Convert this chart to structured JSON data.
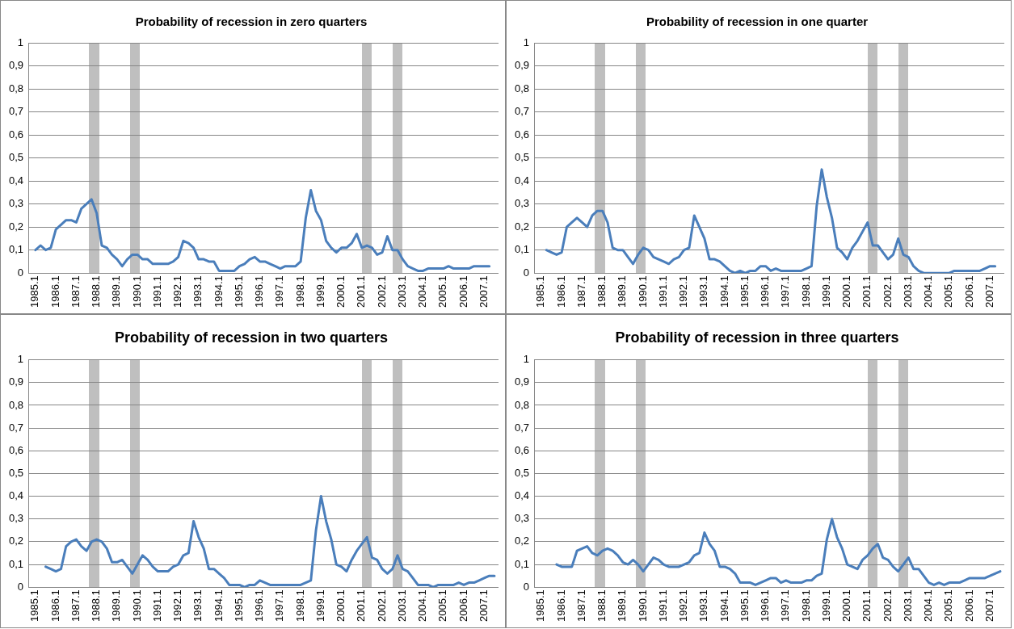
{
  "chart_data": [
    {
      "type": "line",
      "title": "Probability of recession in zero quarters",
      "categories": [
        "1985.1",
        null,
        null,
        null,
        "1986.1",
        null,
        null,
        null,
        "1987.1",
        null,
        null,
        null,
        "1988.1",
        null,
        null,
        null,
        "1989.1",
        null,
        null,
        null,
        "1990.1",
        null,
        null,
        null,
        "1991.1",
        null,
        null,
        null,
        "1992.1",
        null,
        null,
        null,
        "1993.1",
        null,
        null,
        null,
        "1994.1",
        null,
        null,
        null,
        "1995.1",
        null,
        null,
        null,
        "1996.1",
        null,
        null,
        null,
        "1997.1",
        null,
        null,
        null,
        "1998.1",
        null,
        null,
        null,
        "1999.1",
        null,
        null,
        null,
        "2000.1",
        null,
        null,
        null,
        "2001.1",
        null,
        null,
        null,
        "2002.1",
        null,
        null,
        null,
        "2003.1",
        null,
        null,
        null,
        "2004.1",
        null,
        null,
        null,
        "2005.1",
        null,
        null,
        null,
        "2006.1",
        null,
        null,
        null,
        "2007.1",
        null,
        null
      ],
      "series": [
        {
          "color": "#4a7ebb",
          "values": [
            0.1,
            0.12,
            0.1,
            0.11,
            0.19,
            0.21,
            0.23,
            0.23,
            0.22,
            0.28,
            0.3,
            0.32,
            0.26,
            0.12,
            0.11,
            0.08,
            0.06,
            0.03,
            0.06,
            0.08,
            0.08,
            0.06,
            0.06,
            0.04,
            0.04,
            0.04,
            0.04,
            0.05,
            0.07,
            0.14,
            0.13,
            0.11,
            0.06,
            0.06,
            0.05,
            0.05,
            0.01,
            0.01,
            0.01,
            0.01,
            0.03,
            0.04,
            0.06,
            0.07,
            0.05,
            0.05,
            0.04,
            0.03,
            0.02,
            0.03,
            0.03,
            0.03,
            0.05,
            0.24,
            0.36,
            0.27,
            0.23,
            0.14,
            0.11,
            0.09,
            0.11,
            0.11,
            0.13,
            0.17,
            0.11,
            0.12,
            0.11,
            0.08,
            0.09,
            0.16,
            0.1,
            0.1,
            0.06,
            0.03,
            0.02,
            0.01,
            0.01,
            0.02,
            0.02,
            0.02,
            0.02,
            0.03,
            0.02,
            0.02,
            0.02,
            0.02,
            0.03,
            0.03,
            0.03,
            0.03,
            null
          ]
        }
      ],
      "ylim": [
        0,
        1
      ],
      "yticks": [
        {
          "value": 0,
          "label": "0"
        },
        {
          "value": 0.1,
          "label": "0,1"
        },
        {
          "value": 0.2,
          "label": "0,2"
        },
        {
          "value": 0.3,
          "label": "0,3"
        },
        {
          "value": 0.4,
          "label": "0,4"
        },
        {
          "value": 0.5,
          "label": "0,5"
        },
        {
          "value": 0.6,
          "label": "0,6"
        },
        {
          "value": 0.7,
          "label": "0,7"
        },
        {
          "value": 0.8,
          "label": "0,8"
        },
        {
          "value": 0.9,
          "label": "0,9"
        },
        {
          "value": 1,
          "label": "1"
        }
      ],
      "grid": "y",
      "marker": "none",
      "line_style": "solid"
    },
    {
      "type": "line",
      "title": "Probability of recession in one quarter",
      "categories": [
        "1985.1",
        null,
        null,
        null,
        "1986.1",
        null,
        null,
        null,
        "1987.1",
        null,
        null,
        null,
        "1988.1",
        null,
        null,
        null,
        "1989.1",
        null,
        null,
        null,
        "1990.1",
        null,
        null,
        null,
        "1991.1",
        null,
        null,
        null,
        "1992.1",
        null,
        null,
        null,
        "1993.1",
        null,
        null,
        null,
        "1994.1",
        null,
        null,
        null,
        "1995.1",
        null,
        null,
        null,
        "1996.1",
        null,
        null,
        null,
        "1997.1",
        null,
        null,
        null,
        "1998.1",
        null,
        null,
        null,
        "1999.1",
        null,
        null,
        null,
        "2000.1",
        null,
        null,
        null,
        "2001.1",
        null,
        null,
        null,
        "2002.1",
        null,
        null,
        null,
        "2003.1",
        null,
        null,
        null,
        "2004.1",
        null,
        null,
        null,
        "2005.1",
        null,
        null,
        null,
        "2006.1",
        null,
        null,
        null,
        "2007.1",
        null,
        null
      ],
      "series": [
        {
          "color": "#4a7ebb",
          "values": [
            null,
            0.1,
            0.09,
            0.08,
            0.09,
            0.2,
            0.22,
            0.24,
            0.22,
            0.2,
            0.25,
            0.27,
            0.27,
            0.22,
            0.11,
            0.1,
            0.1,
            0.07,
            0.04,
            0.08,
            0.11,
            0.1,
            0.07,
            0.06,
            0.05,
            0.04,
            0.06,
            0.07,
            0.1,
            0.11,
            0.25,
            0.2,
            0.15,
            0.06,
            0.06,
            0.05,
            0.03,
            0.01,
            0.0,
            0.01,
            0.0,
            0.01,
            0.01,
            0.03,
            0.03,
            0.01,
            0.02,
            0.01,
            0.01,
            0.01,
            0.01,
            0.01,
            0.02,
            0.03,
            0.29,
            0.45,
            0.33,
            0.24,
            0.11,
            0.09,
            0.06,
            0.11,
            0.14,
            0.18,
            0.22,
            0.12,
            0.12,
            0.09,
            0.06,
            0.08,
            0.15,
            0.08,
            0.07,
            0.03,
            0.01,
            0.0,
            0.0,
            0.0,
            0.0,
            0.0,
            0.0,
            0.01,
            0.01,
            0.01,
            0.01,
            0.01,
            0.01,
            0.02,
            0.03,
            0.03,
            null
          ]
        }
      ],
      "ylim": [
        0,
        1
      ],
      "yticks": [
        {
          "value": 0,
          "label": "0"
        },
        {
          "value": 0.1,
          "label": "0,1"
        },
        {
          "value": 0.2,
          "label": "0,2"
        },
        {
          "value": 0.3,
          "label": "0,3"
        },
        {
          "value": 0.4,
          "label": "0,4"
        },
        {
          "value": 0.5,
          "label": "0,5"
        },
        {
          "value": 0.6,
          "label": "0,6"
        },
        {
          "value": 0.7,
          "label": "0,7"
        },
        {
          "value": 0.8,
          "label": "0,8"
        },
        {
          "value": 0.9,
          "label": "0,9"
        },
        {
          "value": 1,
          "label": "1"
        }
      ],
      "grid": "y",
      "marker": "none",
      "line_style": "solid"
    },
    {
      "type": "line",
      "title": "Probability of recession in two quarters",
      "categories": [
        "1985.1",
        null,
        null,
        null,
        "1986.1",
        null,
        null,
        null,
        "1987.1",
        null,
        null,
        null,
        "1988.1",
        null,
        null,
        null,
        "1989.1",
        null,
        null,
        null,
        "1990.1",
        null,
        null,
        null,
        "1991.1",
        null,
        null,
        null,
        "1992.1",
        null,
        null,
        null,
        "1993.1",
        null,
        null,
        null,
        "1994.1",
        null,
        null,
        null,
        "1995.1",
        null,
        null,
        null,
        "1996.1",
        null,
        null,
        null,
        "1997.1",
        null,
        null,
        null,
        "1998.1",
        null,
        null,
        null,
        "1999.1",
        null,
        null,
        null,
        "2000.1",
        null,
        null,
        null,
        "2001.1",
        null,
        null,
        null,
        "2002.1",
        null,
        null,
        null,
        "2003.1",
        null,
        null,
        null,
        "2004.1",
        null,
        null,
        null,
        "2005.1",
        null,
        null,
        null,
        "2006.1",
        null,
        null,
        null,
        "2007.1",
        null,
        null
      ],
      "series": [
        {
          "color": "#4a7ebb",
          "values": [
            null,
            null,
            0.09,
            0.08,
            0.07,
            0.08,
            0.18,
            0.2,
            0.21,
            0.18,
            0.16,
            0.2,
            0.21,
            0.2,
            0.17,
            0.11,
            0.11,
            0.12,
            0.09,
            0.06,
            0.1,
            0.14,
            0.12,
            0.09,
            0.07,
            0.07,
            0.07,
            0.09,
            0.1,
            0.14,
            0.15,
            0.29,
            0.22,
            0.17,
            0.08,
            0.08,
            0.06,
            0.04,
            0.01,
            0.01,
            0.01,
            0.0,
            0.01,
            0.01,
            0.03,
            0.02,
            0.01,
            0.01,
            0.01,
            0.01,
            0.01,
            0.01,
            0.01,
            0.02,
            0.03,
            0.25,
            0.4,
            0.29,
            0.21,
            0.1,
            0.09,
            0.07,
            0.12,
            0.16,
            0.19,
            0.22,
            0.13,
            0.12,
            0.08,
            0.06,
            0.08,
            0.14,
            0.08,
            0.07,
            0.04,
            0.01,
            0.01,
            0.01,
            0.0,
            0.01,
            0.01,
            0.01,
            0.01,
            0.02,
            0.01,
            0.02,
            0.02,
            0.03,
            0.04,
            0.05,
            0.05
          ]
        }
      ],
      "ylim": [
        0,
        1
      ],
      "yticks": [
        {
          "value": 0,
          "label": "0"
        },
        {
          "value": 0.1,
          "label": "0,1"
        },
        {
          "value": 0.2,
          "label": "0,2"
        },
        {
          "value": 0.3,
          "label": "0,3"
        },
        {
          "value": 0.4,
          "label": "0,4"
        },
        {
          "value": 0.5,
          "label": "0,5"
        },
        {
          "value": 0.6,
          "label": "0,6"
        },
        {
          "value": 0.7,
          "label": "0,7"
        },
        {
          "value": 0.8,
          "label": "0,8"
        },
        {
          "value": 0.9,
          "label": "0,9"
        },
        {
          "value": 1,
          "label": "1"
        }
      ],
      "grid": "y",
      "marker": "none",
      "line_style": "solid"
    },
    {
      "type": "line",
      "title": "Probability of recession in three quarters",
      "categories": [
        "1985.1",
        null,
        null,
        null,
        "1986.1",
        null,
        null,
        null,
        "1987.1",
        null,
        null,
        null,
        "1988.1",
        null,
        null,
        null,
        "1989.1",
        null,
        null,
        null,
        "1990.1",
        null,
        null,
        null,
        "1991.1",
        null,
        null,
        null,
        "1992.1",
        null,
        null,
        null,
        "1993.1",
        null,
        null,
        null,
        "1994.1",
        null,
        null,
        null,
        "1995.1",
        null,
        null,
        null,
        "1996.1",
        null,
        null,
        null,
        "1997.1",
        null,
        null,
        null,
        "1998.1",
        null,
        null,
        null,
        "1999.1",
        null,
        null,
        null,
        "2000.1",
        null,
        null,
        null,
        "2001.1",
        null,
        null,
        null,
        "2002.1",
        null,
        null,
        null,
        "2003.1",
        null,
        null,
        null,
        "2004.1",
        null,
        null,
        null,
        "2005.1",
        null,
        null,
        null,
        "2006.1",
        null,
        null,
        null,
        "2007.1",
        null,
        null
      ],
      "series": [
        {
          "color": "#4a7ebb",
          "values": [
            null,
            null,
            null,
            0.1,
            0.09,
            0.09,
            0.09,
            0.16,
            0.17,
            0.18,
            0.15,
            0.14,
            0.16,
            0.17,
            0.16,
            0.14,
            0.11,
            0.1,
            0.12,
            0.1,
            0.07,
            0.1,
            0.13,
            0.12,
            0.1,
            0.09,
            0.09,
            0.09,
            0.1,
            0.11,
            0.14,
            0.15,
            0.24,
            0.19,
            0.16,
            0.09,
            0.09,
            0.08,
            0.06,
            0.02,
            0.02,
            0.02,
            0.01,
            0.02,
            0.03,
            0.04,
            0.04,
            0.02,
            0.03,
            0.02,
            0.02,
            0.02,
            0.03,
            0.03,
            0.05,
            0.06,
            0.21,
            0.3,
            0.22,
            0.17,
            0.1,
            0.09,
            0.08,
            0.12,
            0.14,
            0.17,
            0.19,
            0.13,
            0.12,
            0.09,
            0.07,
            0.1,
            0.13,
            0.08,
            0.08,
            0.05,
            0.02,
            0.01,
            0.02,
            0.01,
            0.02,
            0.02,
            0.02,
            0.03,
            0.04,
            0.04,
            0.04,
            0.04,
            0.05,
            0.06,
            0.07
          ]
        }
      ],
      "ylim": [
        0,
        1
      ],
      "yticks": [
        {
          "value": 0,
          "label": "0"
        },
        {
          "value": 0.1,
          "label": "0,1"
        },
        {
          "value": 0.2,
          "label": "0,2"
        },
        {
          "value": 0.3,
          "label": "0,3"
        },
        {
          "value": 0.4,
          "label": "0,4"
        },
        {
          "value": 0.5,
          "label": "0,5"
        },
        {
          "value": 0.6,
          "label": "0,6"
        },
        {
          "value": 0.7,
          "label": "0,7"
        },
        {
          "value": 0.8,
          "label": "0,8"
        },
        {
          "value": 0.9,
          "label": "0,9"
        },
        {
          "value": 1,
          "label": "1"
        }
      ],
      "grid": "y",
      "marker": "none",
      "line_style": "solid"
    }
  ]
}
